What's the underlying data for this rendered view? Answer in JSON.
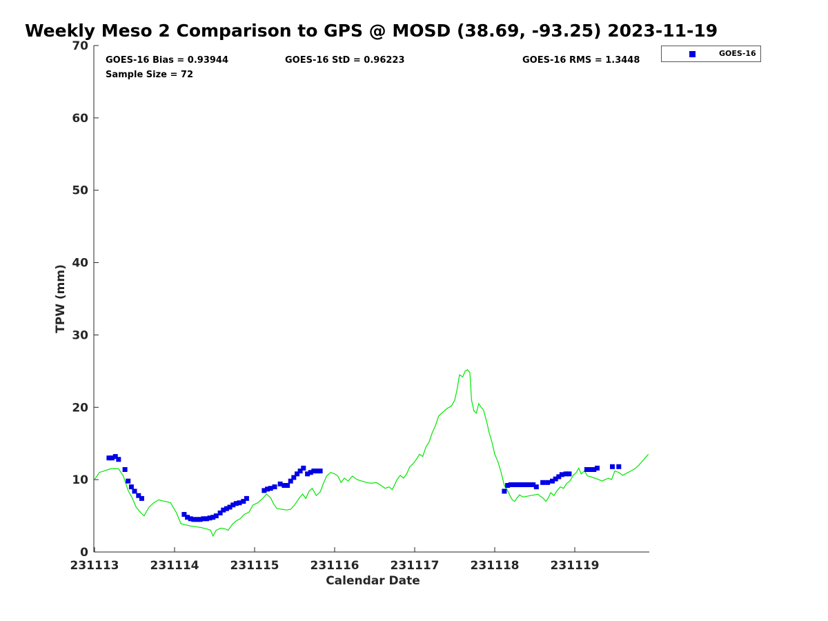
{
  "title": "Weekly Meso 2 Comparison to GPS @ MOSD (38.69, -93.25) 2023-11-19",
  "stats": {
    "bias": "GOES-16 Bias = 0.93944",
    "std": "GOES-16 StD = 0.96223",
    "rms": "GOES-16 RMS = 1.3448",
    "sample": "Sample Size = 72"
  },
  "legend": {
    "label": "GOES-16"
  },
  "colors": {
    "goes": "#0000e6",
    "gps": "#00e600",
    "axis": "#262626"
  },
  "chart_data": {
    "type": "scatter",
    "title": "Weekly Meso 2 Comparison to GPS @ MOSD (38.69, -93.25) 2023-11-19",
    "xlabel": "Calendar Date",
    "ylabel": "TPW (mm)",
    "xlim": [
      0,
      6.95
    ],
    "ylim": [
      0,
      70
    ],
    "x_ticks": [
      {
        "value": 0,
        "label": "231113"
      },
      {
        "value": 1,
        "label": "231114"
      },
      {
        "value": 2,
        "label": "231115"
      },
      {
        "value": 3,
        "label": "231116"
      },
      {
        "value": 4,
        "label": "231117"
      },
      {
        "value": 5,
        "label": "231118"
      },
      {
        "value": 6,
        "label": "231119"
      }
    ],
    "y_ticks": [
      0,
      10,
      20,
      30,
      40,
      50,
      60,
      70
    ],
    "grid": false,
    "legend_position": "top-right, outside plot",
    "x_unit_note": "days",
    "series": [
      {
        "name": "GOES-16",
        "style": "square-markers",
        "points": [
          [
            0.18,
            13.0
          ],
          [
            0.22,
            13.0
          ],
          [
            0.26,
            13.2
          ],
          [
            0.3,
            12.8
          ],
          [
            0.38,
            11.4
          ],
          [
            0.42,
            9.8
          ],
          [
            0.46,
            9.0
          ],
          [
            0.5,
            8.4
          ],
          [
            0.55,
            7.8
          ],
          [
            0.59,
            7.4
          ],
          [
            1.12,
            5.2
          ],
          [
            1.16,
            4.8
          ],
          [
            1.2,
            4.6
          ],
          [
            1.24,
            4.5
          ],
          [
            1.28,
            4.5
          ],
          [
            1.32,
            4.5
          ],
          [
            1.36,
            4.6
          ],
          [
            1.4,
            4.6
          ],
          [
            1.44,
            4.7
          ],
          [
            1.48,
            4.8
          ],
          [
            1.52,
            5.0
          ],
          [
            1.57,
            5.4
          ],
          [
            1.61,
            5.8
          ],
          [
            1.65,
            6.0
          ],
          [
            1.69,
            6.2
          ],
          [
            1.73,
            6.5
          ],
          [
            1.77,
            6.7
          ],
          [
            1.81,
            6.8
          ],
          [
            1.86,
            7.0
          ],
          [
            1.9,
            7.4
          ],
          [
            2.12,
            8.5
          ],
          [
            2.16,
            8.7
          ],
          [
            2.2,
            8.8
          ],
          [
            2.25,
            9.0
          ],
          [
            2.32,
            9.4
          ],
          [
            2.37,
            9.2
          ],
          [
            2.41,
            9.2
          ],
          [
            2.45,
            9.8
          ],
          [
            2.49,
            10.3
          ],
          [
            2.53,
            10.8
          ],
          [
            2.57,
            11.2
          ],
          [
            2.61,
            11.6
          ],
          [
            2.66,
            10.8
          ],
          [
            2.7,
            11.0
          ],
          [
            2.74,
            11.2
          ],
          [
            2.78,
            11.2
          ],
          [
            2.82,
            11.2
          ],
          [
            5.12,
            8.4
          ],
          [
            5.16,
            9.2
          ],
          [
            5.2,
            9.3
          ],
          [
            5.24,
            9.3
          ],
          [
            5.28,
            9.3
          ],
          [
            5.32,
            9.3
          ],
          [
            5.36,
            9.3
          ],
          [
            5.4,
            9.3
          ],
          [
            5.44,
            9.3
          ],
          [
            5.48,
            9.3
          ],
          [
            5.52,
            9.0
          ],
          [
            5.6,
            9.6
          ],
          [
            5.66,
            9.6
          ],
          [
            5.72,
            9.8
          ],
          [
            5.76,
            10.1
          ],
          [
            5.8,
            10.4
          ],
          [
            5.84,
            10.7
          ],
          [
            5.89,
            10.8
          ],
          [
            5.93,
            10.8
          ],
          [
            6.15,
            11.4
          ],
          [
            6.2,
            11.4
          ],
          [
            6.24,
            11.4
          ],
          [
            6.28,
            11.6
          ],
          [
            6.47,
            11.8
          ],
          [
            6.55,
            11.8
          ]
        ]
      },
      {
        "name": "GPS",
        "style": "line",
        "points": [
          [
            0.0,
            10.0
          ],
          [
            0.06,
            11.0
          ],
          [
            0.12,
            11.2
          ],
          [
            0.2,
            11.5
          ],
          [
            0.3,
            11.5
          ],
          [
            0.36,
            10.5
          ],
          [
            0.42,
            8.5
          ],
          [
            0.47,
            7.5
          ],
          [
            0.52,
            6.2
          ],
          [
            0.58,
            5.4
          ],
          [
            0.62,
            5.0
          ],
          [
            0.68,
            6.2
          ],
          [
            0.74,
            6.8
          ],
          [
            0.8,
            7.2
          ],
          [
            0.88,
            7.0
          ],
          [
            0.95,
            6.8
          ],
          [
            1.02,
            5.5
          ],
          [
            1.08,
            3.9
          ],
          [
            1.2,
            3.6
          ],
          [
            1.32,
            3.4
          ],
          [
            1.4,
            3.2
          ],
          [
            1.45,
            3.0
          ],
          [
            1.48,
            2.2
          ],
          [
            1.52,
            3.0
          ],
          [
            1.58,
            3.3
          ],
          [
            1.63,
            3.2
          ],
          [
            1.67,
            3.0
          ],
          [
            1.72,
            3.8
          ],
          [
            1.77,
            4.3
          ],
          [
            1.82,
            4.6
          ],
          [
            1.87,
            5.2
          ],
          [
            1.93,
            5.5
          ],
          [
            1.98,
            6.5
          ],
          [
            2.04,
            6.8
          ],
          [
            2.1,
            7.4
          ],
          [
            2.15,
            8.0
          ],
          [
            2.2,
            7.5
          ],
          [
            2.24,
            6.6
          ],
          [
            2.28,
            6.0
          ],
          [
            2.34,
            5.9
          ],
          [
            2.4,
            5.8
          ],
          [
            2.45,
            5.9
          ],
          [
            2.5,
            6.5
          ],
          [
            2.56,
            7.5
          ],
          [
            2.6,
            8.0
          ],
          [
            2.64,
            7.4
          ],
          [
            2.68,
            8.4
          ],
          [
            2.72,
            8.8
          ],
          [
            2.77,
            7.8
          ],
          [
            2.82,
            8.3
          ],
          [
            2.86,
            9.5
          ],
          [
            2.9,
            10.5
          ],
          [
            2.95,
            11.0
          ],
          [
            3.0,
            10.8
          ],
          [
            3.04,
            10.5
          ],
          [
            3.08,
            9.6
          ],
          [
            3.12,
            10.2
          ],
          [
            3.17,
            9.8
          ],
          [
            3.22,
            10.5
          ],
          [
            3.28,
            10.0
          ],
          [
            3.34,
            9.8
          ],
          [
            3.4,
            9.6
          ],
          [
            3.46,
            9.5
          ],
          [
            3.52,
            9.6
          ],
          [
            3.58,
            9.2
          ],
          [
            3.63,
            8.8
          ],
          [
            3.68,
            9.0
          ],
          [
            3.72,
            8.6
          ],
          [
            3.78,
            10.0
          ],
          [
            3.82,
            10.6
          ],
          [
            3.86,
            10.2
          ],
          [
            3.9,
            10.8
          ],
          [
            3.94,
            11.8
          ],
          [
            3.98,
            12.2
          ],
          [
            4.02,
            12.8
          ],
          [
            4.06,
            13.5
          ],
          [
            4.1,
            13.2
          ],
          [
            4.14,
            14.5
          ],
          [
            4.18,
            15.2
          ],
          [
            4.22,
            16.5
          ],
          [
            4.26,
            17.5
          ],
          [
            4.3,
            18.8
          ],
          [
            4.35,
            19.3
          ],
          [
            4.4,
            19.8
          ],
          [
            4.46,
            20.2
          ],
          [
            4.5,
            21.0
          ],
          [
            4.53,
            22.5
          ],
          [
            4.56,
            24.5
          ],
          [
            4.6,
            24.2
          ],
          [
            4.63,
            25.0
          ],
          [
            4.66,
            25.2
          ],
          [
            4.69,
            24.8
          ],
          [
            4.71,
            21.0
          ],
          [
            4.74,
            19.5
          ],
          [
            4.77,
            19.2
          ],
          [
            4.8,
            20.5
          ],
          [
            4.83,
            20.0
          ],
          [
            4.86,
            19.6
          ],
          [
            4.9,
            18.0
          ],
          [
            4.93,
            16.5
          ],
          [
            4.97,
            15.0
          ],
          [
            5.0,
            13.5
          ],
          [
            5.04,
            12.5
          ],
          [
            5.08,
            11.0
          ],
          [
            5.12,
            9.2
          ],
          [
            5.16,
            8.5
          ],
          [
            5.19,
            7.8
          ],
          [
            5.22,
            7.2
          ],
          [
            5.25,
            7.0
          ],
          [
            5.28,
            7.5
          ],
          [
            5.31,
            7.9
          ],
          [
            5.35,
            7.6
          ],
          [
            5.4,
            7.7
          ],
          [
            5.45,
            7.8
          ],
          [
            5.5,
            7.9
          ],
          [
            5.54,
            8.0
          ],
          [
            5.57,
            7.7
          ],
          [
            5.6,
            7.5
          ],
          [
            5.64,
            7.0
          ],
          [
            5.67,
            7.5
          ],
          [
            5.7,
            8.2
          ],
          [
            5.74,
            7.8
          ],
          [
            5.78,
            8.5
          ],
          [
            5.82,
            9.0
          ],
          [
            5.86,
            8.8
          ],
          [
            5.9,
            9.5
          ],
          [
            5.94,
            9.8
          ],
          [
            5.98,
            10.6
          ],
          [
            6.02,
            11.0
          ],
          [
            6.05,
            11.6
          ],
          [
            6.08,
            10.8
          ],
          [
            6.12,
            11.2
          ],
          [
            6.16,
            10.5
          ],
          [
            6.2,
            10.4
          ],
          [
            6.25,
            10.2
          ],
          [
            6.3,
            10.0
          ],
          [
            6.34,
            9.8
          ],
          [
            6.38,
            10.0
          ],
          [
            6.42,
            10.2
          ],
          [
            6.46,
            10.0
          ],
          [
            6.5,
            11.2
          ],
          [
            6.55,
            11.0
          ],
          [
            6.6,
            10.6
          ],
          [
            6.65,
            10.9
          ],
          [
            6.7,
            11.2
          ],
          [
            6.75,
            11.5
          ],
          [
            6.8,
            12.0
          ],
          [
            6.84,
            12.5
          ],
          [
            6.88,
            13.0
          ],
          [
            6.92,
            13.5
          ],
          [
            6.96,
            15.0
          ],
          [
            7.0,
            16.5
          ]
        ]
      }
    ]
  }
}
